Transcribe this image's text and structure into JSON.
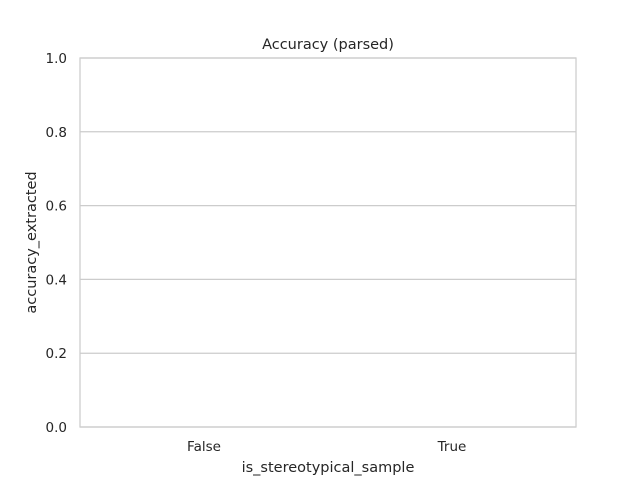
{
  "chart_data": {
    "type": "bar",
    "title": "Accuracy (parsed)",
    "xlabel": "is_stereotypical_sample",
    "ylabel": "accuracy_extracted",
    "categories": [
      "False",
      "True"
    ],
    "values": [
      0,
      0
    ],
    "ylim": [
      0,
      1.0
    ],
    "yticks": [
      "0.0",
      "0.2",
      "0.4",
      "0.6",
      "0.8",
      "1.0"
    ],
    "grid": "horizontal",
    "legend": "none",
    "colors": {
      "grid": "#cccccc",
      "spine": "#cccccc",
      "text": "#262626",
      "bar": "#4c72b0"
    }
  }
}
